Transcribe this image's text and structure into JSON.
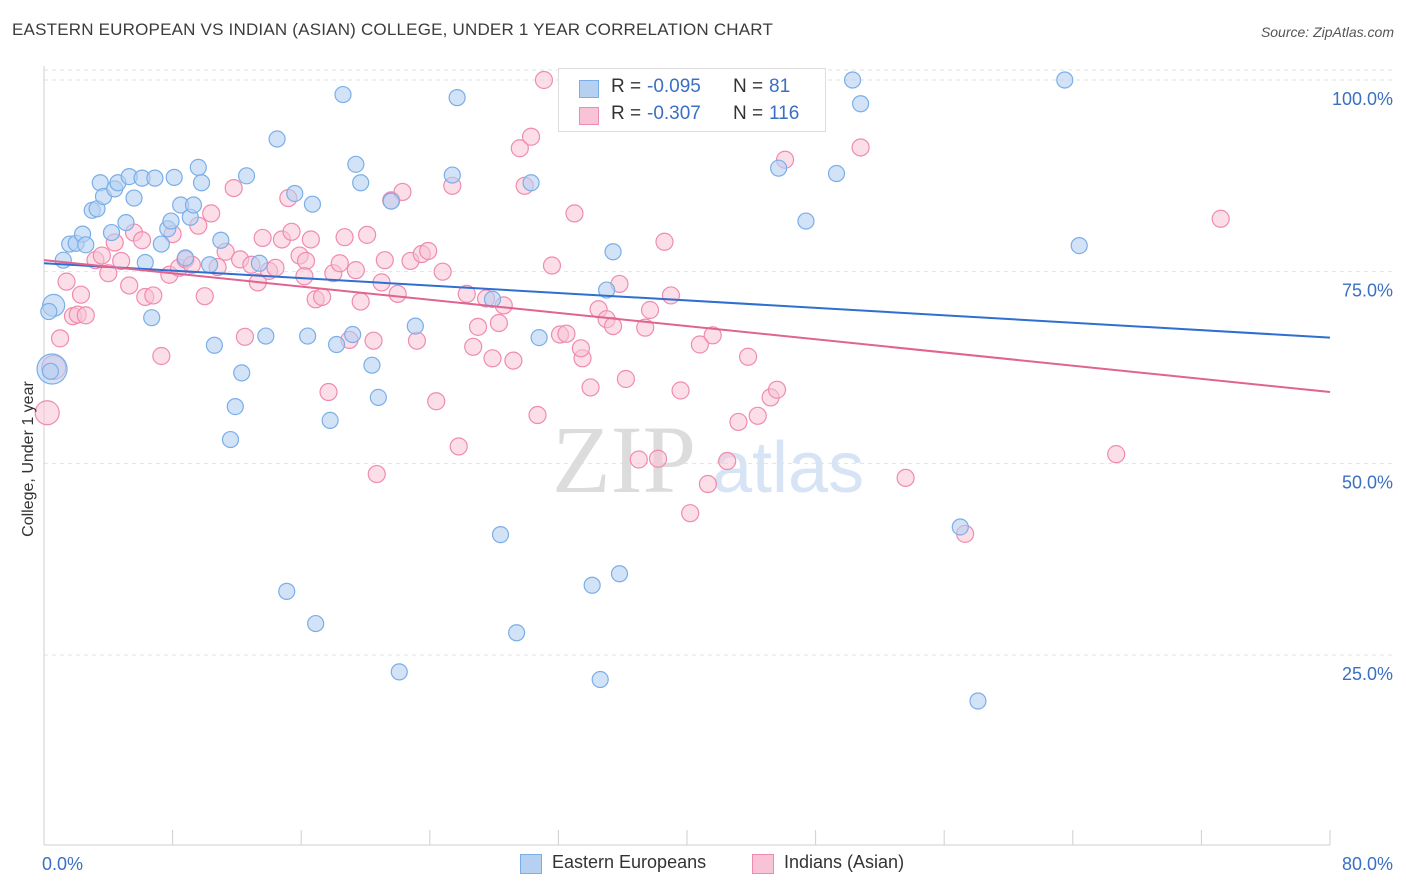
{
  "title": "EASTERN EUROPEAN VS INDIAN (ASIAN) COLLEGE, UNDER 1 YEAR CORRELATION CHART",
  "source": "Source: ZipAtlas.com",
  "watermark": {
    "zip": "ZIP",
    "atlas": "atlas"
  },
  "legend": {
    "r_label": "R =",
    "n_label": "N =",
    "series": [
      {
        "name": "Eastern Europeans",
        "r": "-0.095",
        "n": "81"
      },
      {
        "name": "Indians (Asian)",
        "r": "-0.307",
        "n": "116"
      }
    ]
  },
  "chart_data": {
    "type": "scatter",
    "title": "EASTERN EUROPEAN VS INDIAN (ASIAN) COLLEGE, UNDER 1 YEAR CORRELATION CHART",
    "xlabel": "",
    "ylabel": "College, Under 1 year",
    "xlim": [
      0,
      80
    ],
    "ylim": [
      5,
      103
    ],
    "x_tick_labels": [
      "0.0%",
      "80.0%"
    ],
    "y_ticks": [
      25,
      50,
      75,
      100
    ],
    "y_tick_labels": [
      "25.0%",
      "50.0%",
      "75.0%",
      "100.0%"
    ],
    "grid": true,
    "colors": {
      "eastern": "#7aaee8",
      "eastern_fill": "#b6d0f2",
      "eastern_line": "#2e6fcf",
      "indian": "#f08bb0",
      "indian_fill": "#f8c3d6",
      "indian_line": "#e0648f",
      "tick_label": "#3a6fc4"
    },
    "series": [
      {
        "name": "Eastern Europeans",
        "trend": {
          "x0": 0,
          "y0": 76.1,
          "x1": 80,
          "y1": 66.4
        },
        "points": [
          [
            0.6,
            70.6
          ],
          [
            0.5,
            62.3
          ],
          [
            1.2,
            76.5
          ],
          [
            1.6,
            78.6
          ],
          [
            2.0,
            78.7
          ],
          [
            2.4,
            79.9
          ],
          [
            2.6,
            78.5
          ],
          [
            3.0,
            83.0
          ],
          [
            3.3,
            83.2
          ],
          [
            3.5,
            86.6
          ],
          [
            3.7,
            84.8
          ],
          [
            4.2,
            80.1
          ],
          [
            4.4,
            85.8
          ],
          [
            4.6,
            86.6
          ],
          [
            5.1,
            81.4
          ],
          [
            5.3,
            87.4
          ],
          [
            5.6,
            84.6
          ],
          [
            6.1,
            87.2
          ],
          [
            6.3,
            76.2
          ],
          [
            6.7,
            69.0
          ],
          [
            6.9,
            87.2
          ],
          [
            7.3,
            78.6
          ],
          [
            7.7,
            80.6
          ],
          [
            7.9,
            81.6
          ],
          [
            8.1,
            87.3
          ],
          [
            8.5,
            83.7
          ],
          [
            8.8,
            76.8
          ],
          [
            9.1,
            82.1
          ],
          [
            9.3,
            83.7
          ],
          [
            9.6,
            88.6
          ],
          [
            9.8,
            86.6
          ],
          [
            10.3,
            75.9
          ],
          [
            10.6,
            65.4
          ],
          [
            11.0,
            79.1
          ],
          [
            11.6,
            53.1
          ],
          [
            11.9,
            57.4
          ],
          [
            12.3,
            61.8
          ],
          [
            12.6,
            87.5
          ],
          [
            13.4,
            76.1
          ],
          [
            13.8,
            66.6
          ],
          [
            14.5,
            92.3
          ],
          [
            15.1,
            33.3
          ],
          [
            15.6,
            85.2
          ],
          [
            16.4,
            66.6
          ],
          [
            16.7,
            83.8
          ],
          [
            16.9,
            29.1
          ],
          [
            17.8,
            55.6
          ],
          [
            18.2,
            65.5
          ],
          [
            18.6,
            98.1
          ],
          [
            19.2,
            66.8
          ],
          [
            19.4,
            89.0
          ],
          [
            19.7,
            86.6
          ],
          [
            20.4,
            62.8
          ],
          [
            20.8,
            58.6
          ],
          [
            21.6,
            84.2
          ],
          [
            22.1,
            22.8
          ],
          [
            23.1,
            67.9
          ],
          [
            25.4,
            87.6
          ],
          [
            25.7,
            97.7
          ],
          [
            27.9,
            71.4
          ],
          [
            28.4,
            40.7
          ],
          [
            29.4,
            27.9
          ],
          [
            30.3,
            86.6
          ],
          [
            30.8,
            66.4
          ],
          [
            34.1,
            34.1
          ],
          [
            34.6,
            21.8
          ],
          [
            35.0,
            72.6
          ],
          [
            35.4,
            77.6
          ],
          [
            35.8,
            35.6
          ],
          [
            45.7,
            88.5
          ],
          [
            47.4,
            81.6
          ],
          [
            49.3,
            87.8
          ],
          [
            50.3,
            100.0
          ],
          [
            50.8,
            96.9
          ],
          [
            57.0,
            41.7
          ],
          [
            58.1,
            19.0
          ],
          [
            63.5,
            100.0
          ],
          [
            64.4,
            78.4
          ],
          [
            0.3,
            69.8
          ],
          [
            0.4,
            62.0
          ]
        ]
      },
      {
        "name": "Indians (Asian)",
        "trend": {
          "x0": 0,
          "y0": 76.5,
          "x1": 80,
          "y1": 59.3
        },
        "points": [
          [
            0.2,
            56.6
          ],
          [
            0.6,
            62.5
          ],
          [
            1.0,
            66.3
          ],
          [
            1.4,
            73.7
          ],
          [
            1.8,
            69.2
          ],
          [
            2.1,
            69.4
          ],
          [
            2.3,
            72.0
          ],
          [
            2.6,
            69.3
          ],
          [
            3.2,
            76.5
          ],
          [
            3.6,
            77.1
          ],
          [
            4.0,
            74.8
          ],
          [
            4.4,
            78.8
          ],
          [
            4.8,
            76.4
          ],
          [
            5.3,
            73.2
          ],
          [
            5.6,
            80.1
          ],
          [
            6.1,
            79.1
          ],
          [
            6.3,
            71.7
          ],
          [
            6.8,
            71.9
          ],
          [
            7.3,
            64.0
          ],
          [
            7.8,
            74.6
          ],
          [
            8.0,
            79.9
          ],
          [
            8.4,
            75.5
          ],
          [
            8.8,
            76.6
          ],
          [
            9.2,
            75.9
          ],
          [
            9.6,
            81.0
          ],
          [
            10.0,
            71.8
          ],
          [
            10.4,
            82.6
          ],
          [
            10.8,
            75.6
          ],
          [
            11.3,
            77.6
          ],
          [
            11.8,
            85.9
          ],
          [
            12.2,
            76.6
          ],
          [
            12.5,
            66.5
          ],
          [
            12.9,
            75.9
          ],
          [
            13.3,
            73.6
          ],
          [
            13.6,
            79.4
          ],
          [
            14.0,
            75.1
          ],
          [
            14.4,
            75.5
          ],
          [
            14.8,
            79.2
          ],
          [
            15.2,
            84.6
          ],
          [
            15.4,
            80.2
          ],
          [
            15.9,
            77.1
          ],
          [
            16.3,
            76.4
          ],
          [
            16.6,
            79.2
          ],
          [
            16.9,
            71.4
          ],
          [
            17.3,
            71.7
          ],
          [
            17.7,
            59.3
          ],
          [
            18.0,
            74.8
          ],
          [
            18.4,
            76.1
          ],
          [
            18.7,
            79.5
          ],
          [
            19.0,
            66.1
          ],
          [
            19.4,
            75.2
          ],
          [
            19.7,
            71.1
          ],
          [
            20.1,
            79.8
          ],
          [
            20.5,
            66.0
          ],
          [
            20.7,
            48.6
          ],
          [
            21.0,
            73.6
          ],
          [
            21.2,
            76.5
          ],
          [
            21.6,
            84.3
          ],
          [
            22.0,
            72.1
          ],
          [
            22.3,
            85.4
          ],
          [
            22.8,
            76.4
          ],
          [
            23.2,
            66.0
          ],
          [
            23.5,
            77.3
          ],
          [
            23.9,
            77.7
          ],
          [
            24.4,
            58.1
          ],
          [
            24.8,
            75.0
          ],
          [
            25.4,
            86.2
          ],
          [
            25.8,
            52.2
          ],
          [
            26.3,
            72.1
          ],
          [
            26.7,
            65.2
          ],
          [
            27.0,
            67.8
          ],
          [
            27.5,
            71.5
          ],
          [
            27.9,
            63.7
          ],
          [
            28.3,
            68.3
          ],
          [
            28.6,
            70.6
          ],
          [
            29.2,
            63.4
          ],
          [
            29.6,
            91.1
          ],
          [
            29.9,
            86.2
          ],
          [
            30.3,
            92.6
          ],
          [
            30.7,
            56.3
          ],
          [
            31.1,
            100.0
          ],
          [
            31.6,
            75.8
          ],
          [
            32.1,
            66.8
          ],
          [
            32.5,
            66.9
          ],
          [
            33.0,
            82.6
          ],
          [
            33.5,
            63.7
          ],
          [
            34.0,
            59.9
          ],
          [
            34.5,
            70.1
          ],
          [
            35.0,
            68.8
          ],
          [
            35.4,
            67.9
          ],
          [
            35.8,
            73.4
          ],
          [
            36.2,
            61.0
          ],
          [
            37.0,
            50.5
          ],
          [
            37.4,
            67.7
          ],
          [
            37.7,
            70.0
          ],
          [
            38.2,
            50.6
          ],
          [
            38.6,
            78.9
          ],
          [
            39.0,
            71.9
          ],
          [
            39.6,
            59.5
          ],
          [
            40.2,
            43.5
          ],
          [
            40.8,
            65.5
          ],
          [
            41.3,
            47.3
          ],
          [
            41.6,
            66.7
          ],
          [
            42.5,
            50.3
          ],
          [
            43.2,
            55.4
          ],
          [
            43.8,
            63.9
          ],
          [
            44.4,
            56.2
          ],
          [
            45.2,
            58.6
          ],
          [
            45.6,
            59.6
          ],
          [
            46.1,
            89.6
          ],
          [
            50.8,
            91.2
          ],
          [
            53.6,
            48.1
          ],
          [
            57.3,
            40.8
          ],
          [
            66.7,
            51.2
          ],
          [
            73.2,
            81.9
          ],
          [
            16.2,
            74.4
          ],
          [
            33.4,
            65.0
          ]
        ]
      }
    ]
  }
}
